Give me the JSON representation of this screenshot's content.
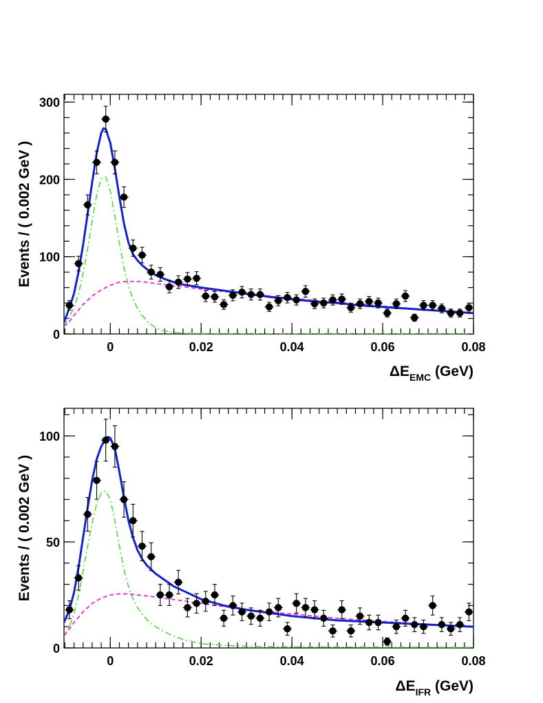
{
  "chart_data": [
    {
      "type": "scatter",
      "ylabel": "Events / ( 0.002 GeV )",
      "xlabel_main": "ΔE",
      "xlabel_sub": "EMC",
      "xlabel_unit": " (GeV)",
      "xlim": [
        -0.0102,
        0.08
      ],
      "ylim": [
        0,
        310
      ],
      "x_ticks": [
        0,
        0.02,
        0.04,
        0.06,
        0.08
      ],
      "x_tick_labels": [
        "0",
        "0.02",
        "0.04",
        "0.06",
        "0.08"
      ],
      "y_ticks": [
        0,
        100,
        200,
        300
      ],
      "y_tick_labels": [
        "0",
        "100",
        "200",
        "300"
      ],
      "x_minor_step": 0.002,
      "y_minor_step": 20,
      "points": {
        "x": [
          -0.009,
          -0.007,
          -0.005,
          -0.003,
          -0.001,
          0.001,
          0.003,
          0.005,
          0.007,
          0.009,
          0.011,
          0.013,
          0.015,
          0.017,
          0.019,
          0.021,
          0.023,
          0.025,
          0.027,
          0.029,
          0.031,
          0.033,
          0.035,
          0.037,
          0.039,
          0.041,
          0.043,
          0.045,
          0.047,
          0.049,
          0.051,
          0.053,
          0.055,
          0.057,
          0.059,
          0.061,
          0.063,
          0.065,
          0.067,
          0.069,
          0.071,
          0.073,
          0.075,
          0.077,
          0.079
        ],
        "y": [
          37,
          91,
          167,
          222,
          278,
          222,
          177,
          111,
          102,
          80,
          77,
          61,
          67,
          71,
          72,
          49,
          48,
          38,
          50,
          54,
          51,
          51,
          35,
          43,
          47,
          44,
          55,
          39,
          40,
          44,
          45,
          34,
          39,
          42,
          40,
          27,
          39,
          49,
          21,
          37,
          37,
          33,
          27,
          27,
          34
        ]
      },
      "series": [
        {
          "role": "total",
          "color": "#1021d0",
          "style": "solid",
          "x": [
            -0.0102,
            -0.009,
            -0.008,
            -0.007,
            -0.006,
            -0.005,
            -0.004,
            -0.003,
            -0.002,
            -0.0015,
            -0.001,
            0.0,
            0.001,
            0.002,
            0.003,
            0.004,
            0.005,
            0.006,
            0.007,
            0.008,
            0.01,
            0.012,
            0.014,
            0.016,
            0.018,
            0.02,
            0.025,
            0.03,
            0.035,
            0.04,
            0.045,
            0.05,
            0.055,
            0.06,
            0.065,
            0.07,
            0.075,
            0.08
          ],
          "y": [
            15,
            34,
            52,
            80,
            115,
            155,
            196,
            234,
            260,
            266,
            265,
            247,
            214,
            177,
            143,
            118,
            103,
            95,
            89,
            84,
            76,
            71,
            67,
            64,
            62,
            60,
            56,
            52,
            48,
            45,
            42,
            40,
            37,
            35,
            33,
            31,
            29,
            27
          ]
        },
        {
          "role": "signal",
          "color": "#5ad848",
          "style": "dashdot",
          "x": [
            -0.0102,
            -0.009,
            -0.008,
            -0.007,
            -0.006,
            -0.005,
            -0.004,
            -0.003,
            -0.002,
            -0.001,
            0.0,
            0.001,
            0.002,
            0.003,
            0.004,
            0.005,
            0.006,
            0.007,
            0.008,
            0.009,
            0.01,
            0.011,
            0.012,
            0.013,
            0.014,
            0.016,
            0.02,
            0.03,
            0.08
          ],
          "y": [
            10,
            22,
            34,
            52,
            78,
            110,
            146,
            180,
            201,
            203,
            185,
            152,
            117,
            86,
            62,
            45,
            33,
            24,
            17,
            12,
            8,
            5.5,
            4,
            3,
            2,
            1,
            0.5,
            0.2,
            0.1
          ]
        },
        {
          "role": "background",
          "color": "#e830d8",
          "style": "dashed",
          "x": [
            -0.0102,
            -0.009,
            -0.008,
            -0.006,
            -0.004,
            -0.002,
            0.0,
            0.002,
            0.004,
            0.006,
            0.008,
            0.01,
            0.015,
            0.02,
            0.025,
            0.03,
            0.04,
            0.05,
            0.06,
            0.07,
            0.08
          ],
          "y": [
            10,
            16,
            24,
            38,
            49,
            57,
            63,
            67,
            68,
            68,
            67,
            65,
            62,
            58,
            55,
            52,
            46,
            41,
            36,
            31,
            26
          ]
        }
      ]
    },
    {
      "type": "scatter",
      "ylabel": "Events / ( 0.002 GeV )",
      "xlabel_main": "ΔE",
      "xlabel_sub": "IFR",
      "xlabel_unit": " (GeV)",
      "xlim": [
        -0.0102,
        0.08
      ],
      "ylim": [
        0,
        113
      ],
      "x_ticks": [
        0,
        0.02,
        0.04,
        0.06,
        0.08
      ],
      "x_tick_labels": [
        "0",
        "0.02",
        "0.04",
        "0.06",
        "0.08"
      ],
      "y_ticks": [
        0,
        50,
        100
      ],
      "y_tick_labels": [
        "0",
        "50",
        "100"
      ],
      "x_minor_step": 0.002,
      "y_minor_step": 10,
      "points": {
        "x": [
          -0.009,
          -0.007,
          -0.005,
          -0.003,
          -0.001,
          0.001,
          0.003,
          0.005,
          0.007,
          0.009,
          0.011,
          0.013,
          0.015,
          0.017,
          0.019,
          0.021,
          0.023,
          0.025,
          0.027,
          0.029,
          0.031,
          0.033,
          0.035,
          0.037,
          0.039,
          0.041,
          0.043,
          0.045,
          0.047,
          0.049,
          0.051,
          0.053,
          0.055,
          0.057,
          0.059,
          0.061,
          0.063,
          0.065,
          0.067,
          0.069,
          0.071,
          0.073,
          0.075,
          0.077,
          0.079
        ],
        "y": [
          18,
          33,
          63,
          79,
          98,
          95,
          70,
          60,
          48,
          43,
          25,
          25,
          31,
          19,
          21,
          22,
          25,
          14,
          20,
          17,
          15,
          14,
          17,
          19,
          9,
          21,
          19,
          18,
          14,
          8,
          18,
          8,
          15,
          12,
          12,
          3,
          10,
          14,
          11,
          10,
          20,
          11,
          9,
          11,
          17
        ]
      },
      "series": [
        {
          "role": "total",
          "color": "#1021d0",
          "style": "solid",
          "x": [
            -0.0102,
            -0.009,
            -0.008,
            -0.007,
            -0.006,
            -0.005,
            -0.004,
            -0.003,
            -0.002,
            -0.001,
            -0.0005,
            0.0,
            0.001,
            0.002,
            0.003,
            0.004,
            0.005,
            0.006,
            0.007,
            0.008,
            0.01,
            0.012,
            0.014,
            0.016,
            0.018,
            0.02,
            0.025,
            0.03,
            0.035,
            0.04,
            0.045,
            0.05,
            0.055,
            0.06,
            0.065,
            0.07,
            0.075,
            0.08
          ],
          "y": [
            12,
            18,
            26,
            38,
            52,
            66,
            79,
            89,
            95,
            99,
            99.5,
            99,
            94,
            83,
            71,
            60,
            52,
            46,
            42,
            39,
            35,
            32,
            29,
            27,
            25,
            23,
            20,
            18,
            16.5,
            15,
            14,
            13,
            12.5,
            12,
            11.5,
            11,
            10.5,
            10
          ]
        },
        {
          "role": "signal",
          "color": "#5ad848",
          "style": "dashdot",
          "x": [
            -0.0102,
            -0.009,
            -0.008,
            -0.007,
            -0.006,
            -0.005,
            -0.004,
            -0.003,
            -0.002,
            -0.001,
            0.0,
            0.001,
            0.002,
            0.003,
            0.004,
            0.005,
            0.006,
            0.007,
            0.008,
            0.009,
            0.01,
            0.012,
            0.014,
            0.016,
            0.018,
            0.02,
            0.025,
            0.03,
            0.04,
            0.08
          ],
          "y": [
            5,
            10,
            16,
            25,
            36,
            48,
            59,
            68,
            73,
            74,
            70,
            60,
            48,
            37,
            29,
            23,
            19,
            16,
            13.5,
            11.5,
            10,
            7.5,
            5.5,
            4,
            3,
            2,
            1.2,
            0.8,
            0.5,
            0.3
          ]
        },
        {
          "role": "background",
          "color": "#e830d8",
          "style": "dashed",
          "x": [
            -0.0102,
            -0.009,
            -0.008,
            -0.006,
            -0.004,
            -0.002,
            0.0,
            0.002,
            0.004,
            0.006,
            0.008,
            0.01,
            0.015,
            0.02,
            0.025,
            0.03,
            0.04,
            0.05,
            0.06,
            0.07,
            0.08
          ],
          "y": [
            6,
            9,
            12,
            17,
            21,
            23.5,
            25,
            25.5,
            25.5,
            25,
            24.5,
            24,
            22.5,
            21,
            19.5,
            18,
            16,
            14,
            12.5,
            11,
            10
          ]
        }
      ]
    }
  ]
}
